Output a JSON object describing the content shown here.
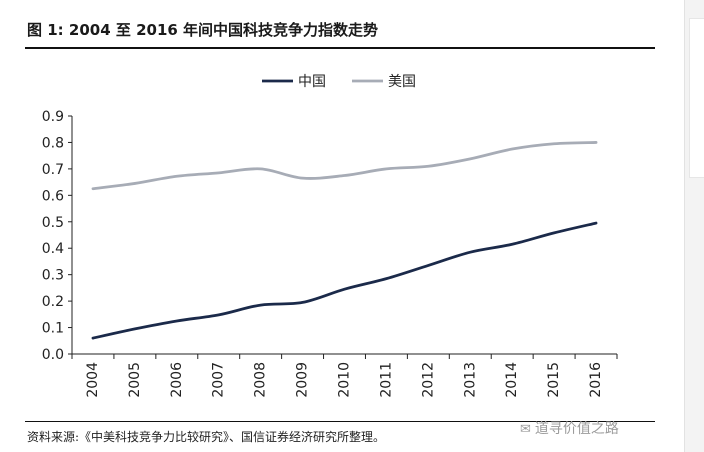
{
  "figure_title": "图 1:  2004 至 2016 年间中国科技竞争力指数走势",
  "source_note": "资料来源:《中美科技竞争力比较研究》、国信证券经济研究所整理。",
  "watermark": "道寻价值之路",
  "chart_data": {
    "type": "line",
    "x": [
      "2004",
      "2005",
      "2006",
      "2007",
      "2008",
      "2009",
      "2010",
      "2011",
      "2012",
      "2013",
      "2014",
      "2015",
      "2016"
    ],
    "series": [
      {
        "name": "中国",
        "color": "#1b2a4a",
        "values": [
          0.06,
          0.095,
          0.125,
          0.148,
          0.185,
          0.195,
          0.245,
          0.285,
          0.335,
          0.385,
          0.415,
          0.458,
          0.495
        ]
      },
      {
        "name": "美国",
        "color": "#a7acb6",
        "values": [
          0.625,
          0.645,
          0.672,
          0.685,
          0.7,
          0.665,
          0.675,
          0.7,
          0.71,
          0.738,
          0.775,
          0.795,
          0.8
        ]
      }
    ],
    "ylim": [
      0,
      0.9
    ],
    "yticks": [
      "0.0",
      "0.1",
      "0.2",
      "0.3",
      "0.4",
      "0.5",
      "0.6",
      "0.7",
      "0.8",
      "0.9"
    ],
    "legend_position": "top-center",
    "grid": false
  }
}
